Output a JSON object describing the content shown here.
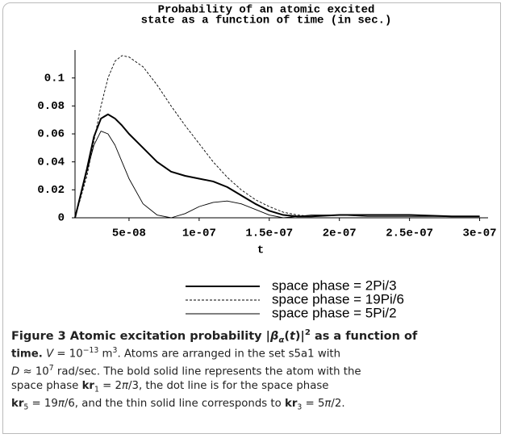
{
  "chart_data": {
    "type": "line",
    "title_lines": [
      "Probability of an atomic excited",
      "state as a function of time (in sec.)"
    ],
    "x_label": "t",
    "x": [
      1.15e-08,
      2e-08,
      2.5e-08,
      3e-08,
      3.5e-08,
      4e-08,
      4.5e-08,
      5e-08,
      6e-08,
      7e-08,
      8e-08,
      9e-08,
      1e-07,
      1.1e-07,
      1.2e-07,
      1.3e-07,
      1.4e-07,
      1.5e-07,
      1.6e-07,
      1.7e-07,
      1.8e-07,
      2e-07,
      2.2e-07,
      2.5e-07,
      2.8e-07,
      3e-07
    ],
    "series": [
      {
        "name": "space phase = 2Pi/3",
        "color": "#000000",
        "style": "bold",
        "values": [
          0,
          0.035,
          0.058,
          0.071,
          0.074,
          0.071,
          0.066,
          0.06,
          0.05,
          0.04,
          0.033,
          0.03,
          0.028,
          0.026,
          0.022,
          0.016,
          0.01,
          0.005,
          0.002,
          0.001,
          0.001,
          0.002,
          0.002,
          0.002,
          0.001,
          0.001
        ]
      },
      {
        "name": "space phase = 19Pi/6",
        "color": "#000000",
        "style": "dashed",
        "values": [
          0,
          0.03,
          0.055,
          0.08,
          0.1,
          0.112,
          0.116,
          0.115,
          0.108,
          0.095,
          0.08,
          0.066,
          0.053,
          0.04,
          0.029,
          0.02,
          0.013,
          0.008,
          0.004,
          0.002,
          0.001,
          0.002,
          0.002,
          0.002,
          0.001,
          0.001
        ]
      },
      {
        "name": "space phase = 5Pi/2",
        "color": "#000000",
        "style": "thin",
        "values": [
          0,
          0.033,
          0.052,
          0.062,
          0.06,
          0.052,
          0.04,
          0.028,
          0.01,
          0.002,
          0,
          0.003,
          0.008,
          0.011,
          0.012,
          0.01,
          0.006,
          0.002,
          0,
          0.001,
          0.002,
          0.002,
          0.001,
          0.001,
          0.001,
          0.001
        ]
      }
    ],
    "xlim": [
      1.15e-08,
      3.06e-07
    ],
    "ylim": [
      0,
      0.12
    ],
    "xticks": [
      {
        "value": 5e-08,
        "label": "5e-08"
      },
      {
        "value": 1e-07,
        "label": "1e-07"
      },
      {
        "value": 1.5e-07,
        "label": "1.5e-07"
      },
      {
        "value": 2e-07,
        "label": "2e-07"
      },
      {
        "value": 2.5e-07,
        "label": "2.5e-07"
      },
      {
        "value": 3e-07,
        "label": "3e-07"
      }
    ],
    "yticks": [
      0,
      0.02,
      0.04,
      0.06,
      0.08,
      0.1
    ]
  },
  "caption": {
    "lines": [
      [
        {
          "text": "Figure 3 Atomic excitation probability |",
          "b": true
        },
        {
          "text": "β",
          "b": true,
          "i": true
        },
        {
          "text": "α",
          "b": true,
          "i": true,
          "sub": true
        },
        {
          "text": "(",
          "b": true
        },
        {
          "text": "t",
          "b": true,
          "i": true
        },
        {
          "text": ")|",
          "b": true
        },
        {
          "text": "2",
          "b": true,
          "sup": true
        },
        {
          "text": " as a function of",
          "b": true
        }
      ],
      [
        {
          "text": "time.",
          "b": true
        },
        {
          "text": " "
        },
        {
          "text": "V",
          "i": true
        },
        {
          "text": " = 10"
        },
        {
          "text": "−13",
          "sup": true
        },
        {
          "text": " m"
        },
        {
          "text": "3",
          "sup": true
        },
        {
          "text": ". Atoms are arranged in the set s5a1 with"
        }
      ],
      [
        {
          "text": "D",
          "i": true
        },
        {
          "text": " ≈ 10"
        },
        {
          "text": "7",
          "sup": true
        },
        {
          "text": " rad/sec. The bold solid line represents the atom with the"
        }
      ],
      [
        {
          "text": "space phase "
        },
        {
          "text": "kr",
          "b": true
        },
        {
          "text": "1",
          "sub": true
        },
        {
          "text": " = 2"
        },
        {
          "text": "π",
          "i": true
        },
        {
          "text": "/3, the dot line is for the space phase"
        }
      ],
      [
        {
          "text": "kr",
          "b": true
        },
        {
          "text": "5",
          "sub": true
        },
        {
          "text": " = 19"
        },
        {
          "text": "π",
          "i": true
        },
        {
          "text": "/6, and the thin solid line corresponds to "
        },
        {
          "text": "kr",
          "b": true
        },
        {
          "text": "3",
          "sub": true
        },
        {
          "text": " = 5"
        },
        {
          "text": "π",
          "i": true
        },
        {
          "text": "/2."
        }
      ]
    ]
  }
}
